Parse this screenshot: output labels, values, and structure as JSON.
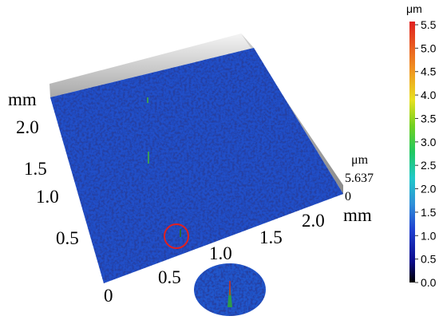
{
  "surface": {
    "y_axis": {
      "label": "mm",
      "ticks": [
        "2.0",
        "1.5",
        "1.0",
        "0.5"
      ]
    },
    "origin": "0",
    "x_axis": {
      "label": "mm",
      "ticks": [
        "0.5",
        "1.0",
        "1.5",
        "2.0"
      ]
    },
    "z_axis": {
      "unit": "μm",
      "max": "5.637",
      "min": "0"
    }
  },
  "colorbar": {
    "unit": "μm",
    "ticks": [
      {
        "value": 0,
        "label": "0.0"
      },
      0.5,
      {
        "value": 1,
        "label": "1.0"
      },
      1.5,
      {
        "value": 2,
        "label": "2.0"
      },
      2.5,
      {
        "value": 3,
        "label": "3.0"
      },
      3.5,
      {
        "value": 4,
        "label": "4.0"
      },
      4.5,
      {
        "value": 5,
        "label": "5.0"
      },
      5.5
    ]
  }
}
